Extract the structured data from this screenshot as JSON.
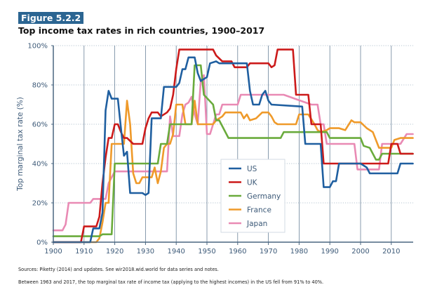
{
  "figure_label": "Figure 5.2.2",
  "title": "Top income tax rates in rich countries, 1900–2017",
  "footer": {
    "sources": "Sources: Piketty (2014) and updates. See wir2018.wid.world for data series and notes.",
    "note": "Between 1963 and 2017, the top marginal tax rate of income tax (applying to the highest incomes) in the US fell from 91% to 40%."
  },
  "chart_data": {
    "type": "line",
    "title": "Top income tax rates in rich countries, 1900–2017",
    "xlabel": "",
    "ylabel": "Top marginal tax rate (%)",
    "xlim": [
      1900,
      2017
    ],
    "ylim": [
      0,
      100
    ],
    "x_ticks": [
      1900,
      1910,
      1920,
      1930,
      1940,
      1950,
      1960,
      1970,
      1980,
      1990,
      2000,
      2010
    ],
    "y_ticks": [
      0,
      20,
      40,
      60,
      80,
      100
    ],
    "y_tick_labels": [
      "0%",
      "20%",
      "40%",
      "60%",
      "80%",
      "100%"
    ],
    "grid": "horizontal-dotted, vertical-solid",
    "legend_position": "center-right",
    "series": [
      {
        "name": "US",
        "color": "#1f5fa0",
        "points": [
          [
            1900,
            0
          ],
          [
            1912,
            0
          ],
          [
            1913,
            7
          ],
          [
            1915,
            7
          ],
          [
            1916,
            15
          ],
          [
            1917,
            67
          ],
          [
            1918,
            77
          ],
          [
            1919,
            73
          ],
          [
            1921,
            73
          ],
          [
            1922,
            58
          ],
          [
            1923,
            44
          ],
          [
            1924,
            46
          ],
          [
            1925,
            25
          ],
          [
            1929,
            25
          ],
          [
            1930,
            24
          ],
          [
            1931,
            25
          ],
          [
            1932,
            63
          ],
          [
            1935,
            63
          ],
          [
            1936,
            79
          ],
          [
            1940,
            79
          ],
          [
            1941,
            81
          ],
          [
            1942,
            88
          ],
          [
            1943,
            88
          ],
          [
            1944,
            94
          ],
          [
            1946,
            94
          ],
          [
            1947,
            86
          ],
          [
            1948,
            82
          ],
          [
            1950,
            84
          ],
          [
            1951,
            91
          ],
          [
            1953,
            92
          ],
          [
            1954,
            91
          ],
          [
            1963,
            91
          ],
          [
            1964,
            77
          ],
          [
            1965,
            70
          ],
          [
            1967,
            70
          ],
          [
            1968,
            75
          ],
          [
            1969,
            77
          ],
          [
            1970,
            72
          ],
          [
            1971,
            70
          ],
          [
            1981,
            69
          ],
          [
            1982,
            50
          ],
          [
            1987,
            50
          ],
          [
            1988,
            28
          ],
          [
            1990,
            28
          ],
          [
            1991,
            31
          ],
          [
            1992,
            31
          ],
          [
            1993,
            40
          ],
          [
            2000,
            40
          ],
          [
            2001,
            39
          ],
          [
            2002,
            38
          ],
          [
            2003,
            35
          ],
          [
            2012,
            35
          ],
          [
            2013,
            40
          ],
          [
            2017,
            40
          ]
        ]
      },
      {
        "name": "UK",
        "color": "#cc1a1a",
        "points": [
          [
            1900,
            0
          ],
          [
            1909,
            0
          ],
          [
            1910,
            8
          ],
          [
            1914,
            8
          ],
          [
            1915,
            13
          ],
          [
            1916,
            30
          ],
          [
            1917,
            43
          ],
          [
            1918,
            53
          ],
          [
            1919,
            53
          ],
          [
            1920,
            60
          ],
          [
            1921,
            60
          ],
          [
            1922,
            56
          ],
          [
            1923,
            53
          ],
          [
            1924,
            53
          ],
          [
            1926,
            50
          ],
          [
            1929,
            50
          ],
          [
            1930,
            58
          ],
          [
            1931,
            63
          ],
          [
            1932,
            66
          ],
          [
            1934,
            66
          ],
          [
            1935,
            64
          ],
          [
            1937,
            66
          ],
          [
            1938,
            68
          ],
          [
            1939,
            75
          ],
          [
            1940,
            88
          ],
          [
            1941,
            98
          ],
          [
            1952,
            98
          ],
          [
            1953,
            95
          ],
          [
            1955,
            92
          ],
          [
            1958,
            92
          ],
          [
            1959,
            89
          ],
          [
            1963,
            89
          ],
          [
            1964,
            91
          ],
          [
            1970,
            91
          ],
          [
            1971,
            89
          ],
          [
            1972,
            90
          ],
          [
            1973,
            98
          ],
          [
            1978,
            98
          ],
          [
            1979,
            75
          ],
          [
            1983,
            75
          ],
          [
            1984,
            60
          ],
          [
            1987,
            60
          ],
          [
            1988,
            40
          ],
          [
            2009,
            40
          ],
          [
            2010,
            50
          ],
          [
            2012,
            50
          ],
          [
            2013,
            45
          ],
          [
            2017,
            45
          ]
        ]
      },
      {
        "name": "Germany",
        "color": "#6aab3c",
        "points": [
          [
            1900,
            3
          ],
          [
            1915,
            3
          ],
          [
            1916,
            4
          ],
          [
            1919,
            4
          ],
          [
            1920,
            40
          ],
          [
            1930,
            40
          ],
          [
            1934,
            40
          ],
          [
            1935,
            50
          ],
          [
            1937,
            50
          ],
          [
            1938,
            60
          ],
          [
            1945,
            60
          ],
          [
            1946,
            90
          ],
          [
            1948,
            90
          ],
          [
            1949,
            75
          ],
          [
            1952,
            70
          ],
          [
            1953,
            62
          ],
          [
            1954,
            62
          ],
          [
            1957,
            53
          ],
          [
            1974,
            53
          ],
          [
            1975,
            56
          ],
          [
            1989,
            56
          ],
          [
            1990,
            53
          ],
          [
            2000,
            53
          ],
          [
            2001,
            49
          ],
          [
            2003,
            48
          ],
          [
            2004,
            45
          ],
          [
            2005,
            42
          ],
          [
            2006,
            42
          ],
          [
            2007,
            45
          ],
          [
            2017,
            45
          ]
        ]
      },
      {
        "name": "France",
        "color": "#ef9a2a",
        "points": [
          [
            1900,
            0
          ],
          [
            1914,
            0
          ],
          [
            1915,
            2
          ],
          [
            1916,
            10
          ],
          [
            1917,
            20
          ],
          [
            1918,
            20
          ],
          [
            1919,
            50
          ],
          [
            1920,
            50
          ],
          [
            1923,
            50
          ],
          [
            1924,
            72
          ],
          [
            1925,
            60
          ],
          [
            1926,
            35
          ],
          [
            1927,
            30
          ],
          [
            1928,
            30
          ],
          [
            1929,
            33
          ],
          [
            1932,
            33
          ],
          [
            1933,
            38
          ],
          [
            1934,
            30
          ],
          [
            1935,
            36
          ],
          [
            1936,
            48
          ],
          [
            1937,
            50
          ],
          [
            1938,
            50
          ],
          [
            1939,
            55
          ],
          [
            1940,
            70
          ],
          [
            1942,
            70
          ],
          [
            1943,
            60
          ],
          [
            1944,
            60
          ],
          [
            1945,
            60
          ],
          [
            1946,
            72
          ],
          [
            1947,
            60
          ],
          [
            1951,
            60
          ],
          [
            1952,
            60
          ],
          [
            1953,
            62
          ],
          [
            1955,
            64
          ],
          [
            1956,
            66
          ],
          [
            1961,
            66
          ],
          [
            1962,
            63
          ],
          [
            1963,
            65
          ],
          [
            1964,
            62
          ],
          [
            1966,
            63
          ],
          [
            1968,
            66
          ],
          [
            1970,
            66
          ],
          [
            1971,
            64
          ],
          [
            1972,
            61
          ],
          [
            1973,
            60
          ],
          [
            1979,
            60
          ],
          [
            1980,
            65
          ],
          [
            1981,
            65
          ],
          [
            1982,
            65
          ],
          [
            1983,
            65
          ],
          [
            1985,
            60
          ],
          [
            1986,
            57
          ],
          [
            1987,
            56
          ],
          [
            1989,
            57
          ],
          [
            1990,
            58
          ],
          [
            1993,
            58
          ],
          [
            1995,
            57
          ],
          [
            1997,
            62
          ],
          [
            1998,
            61
          ],
          [
            2000,
            61
          ],
          [
            2002,
            58
          ],
          [
            2004,
            56
          ],
          [
            2006,
            48
          ],
          [
            2007,
            48
          ],
          [
            2010,
            48
          ],
          [
            2011,
            52
          ],
          [
            2013,
            53
          ],
          [
            2017,
            53
          ]
        ]
      },
      {
        "name": "Japan",
        "color": "#e98ab4",
        "points": [
          [
            1900,
            6
          ],
          [
            1903,
            6
          ],
          [
            1904,
            9
          ],
          [
            1905,
            20
          ],
          [
            1912,
            20
          ],
          [
            1913,
            22
          ],
          [
            1917,
            22
          ],
          [
            1918,
            30
          ],
          [
            1920,
            36
          ],
          [
            1937,
            36
          ],
          [
            1938,
            64
          ],
          [
            1939,
            54
          ],
          [
            1941,
            54
          ],
          [
            1942,
            65
          ],
          [
            1943,
            70
          ],
          [
            1944,
            71
          ],
          [
            1945,
            74
          ],
          [
            1946,
            65
          ],
          [
            1947,
            60
          ],
          [
            1948,
            82
          ],
          [
            1949,
            85
          ],
          [
            1950,
            55
          ],
          [
            1951,
            55
          ],
          [
            1952,
            60
          ],
          [
            1953,
            65
          ],
          [
            1954,
            65
          ],
          [
            1955,
            70
          ],
          [
            1960,
            70
          ],
          [
            1961,
            75
          ],
          [
            1974,
            75
          ],
          [
            1975,
            75
          ],
          [
            1984,
            70
          ],
          [
            1985,
            70
          ],
          [
            1986,
            70
          ],
          [
            1987,
            60
          ],
          [
            1988,
            60
          ],
          [
            1989,
            50
          ],
          [
            1998,
            50
          ],
          [
            1999,
            37
          ],
          [
            2006,
            37
          ],
          [
            2007,
            50
          ],
          [
            2013,
            50
          ],
          [
            2015,
            55
          ],
          [
            2017,
            55
          ]
        ]
      }
    ]
  }
}
